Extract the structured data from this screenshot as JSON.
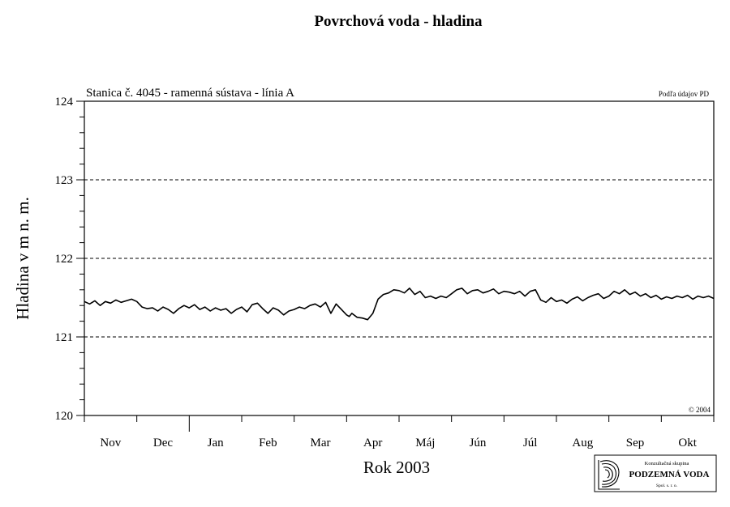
{
  "chart_data": {
    "type": "line",
    "title": "Povrchová voda - hladina",
    "subtitle": "Stanica č. 4045 - ramenná sústava - línia A",
    "source_note": "Podľa údajov PD",
    "copyright": "© 2004",
    "xlabel": "Rok 2003",
    "ylabel": "Hladina v m n. m.",
    "ylim": [
      120,
      124
    ],
    "y_ticks": [
      120,
      121,
      122,
      123,
      124
    ],
    "y_minor_step": 0.2,
    "x_categories": [
      "Nov",
      "Dec",
      "Jan",
      "Feb",
      "Mar",
      "Apr",
      "Máj",
      "Jún",
      "Júl",
      "Aug",
      "Sep",
      "Okt"
    ],
    "grid": "horizontal dashed at 121, 122, 123",
    "series": [
      {
        "color": "#000000",
        "x": [
          0.0,
          0.1,
          0.2,
          0.3,
          0.4,
          0.5,
          0.6,
          0.7,
          0.8,
          0.9,
          1.0,
          1.1,
          1.2,
          1.3,
          1.4,
          1.5,
          1.6,
          1.7,
          1.8,
          1.9,
          2.0,
          2.1,
          2.2,
          2.3,
          2.4,
          2.5,
          2.6,
          2.7,
          2.8,
          2.9,
          3.0,
          3.1,
          3.2,
          3.3,
          3.4,
          3.5,
          3.6,
          3.7,
          3.8,
          3.9,
          4.0,
          4.1,
          4.2,
          4.3,
          4.4,
          4.5,
          4.6,
          4.7,
          4.8,
          4.9,
          5.0,
          5.05,
          5.1,
          5.2,
          5.3,
          5.4,
          5.5,
          5.6,
          5.7,
          5.8,
          5.9,
          6.0,
          6.1,
          6.2,
          6.3,
          6.4,
          6.5,
          6.6,
          6.7,
          6.8,
          6.9,
          7.0,
          7.1,
          7.2,
          7.3,
          7.4,
          7.5,
          7.6,
          7.7,
          7.8,
          7.9,
          8.0,
          8.1,
          8.2,
          8.3,
          8.4,
          8.5,
          8.6,
          8.7,
          8.8,
          8.9,
          9.0,
          9.1,
          9.2,
          9.3,
          9.4,
          9.5,
          9.6,
          9.7,
          9.8,
          9.9,
          10.0,
          10.1,
          10.2,
          10.3,
          10.4,
          10.5,
          10.6,
          10.7,
          10.8,
          10.9,
          11.0,
          11.1,
          11.2,
          11.3,
          11.4,
          11.5,
          11.6,
          11.7,
          11.8,
          11.9,
          12.0
        ],
        "values": [
          121.45,
          121.42,
          121.46,
          121.4,
          121.45,
          121.43,
          121.47,
          121.44,
          121.46,
          121.48,
          121.45,
          121.38,
          121.36,
          121.37,
          121.33,
          121.38,
          121.35,
          121.3,
          121.36,
          121.4,
          121.37,
          121.41,
          121.35,
          121.38,
          121.33,
          121.37,
          121.34,
          121.36,
          121.3,
          121.35,
          121.38,
          121.32,
          121.41,
          121.43,
          121.36,
          121.3,
          121.37,
          121.34,
          121.28,
          121.33,
          121.35,
          121.38,
          121.36,
          121.4,
          121.42,
          121.38,
          121.44,
          121.3,
          121.42,
          121.35,
          121.28,
          121.26,
          121.3,
          121.25,
          121.24,
          121.22,
          121.3,
          121.48,
          121.54,
          121.56,
          121.6,
          121.59,
          121.56,
          121.62,
          121.54,
          121.58,
          121.5,
          121.52,
          121.49,
          121.52,
          121.5,
          121.55,
          121.6,
          121.62,
          121.55,
          121.59,
          121.6,
          121.56,
          121.58,
          121.61,
          121.55,
          121.58,
          121.57,
          121.55,
          121.58,
          121.52,
          121.58,
          121.6,
          121.47,
          121.44,
          121.5,
          121.45,
          121.47,
          121.43,
          121.48,
          121.51,
          121.46,
          121.5,
          121.53,
          121.55,
          121.49,
          121.52,
          121.58,
          121.55,
          121.6,
          121.54,
          121.57,
          121.52,
          121.55,
          121.5,
          121.53,
          121.48,
          121.51,
          121.49,
          121.52,
          121.5,
          121.53,
          121.48,
          121.52,
          121.5,
          121.52,
          121.49
        ]
      }
    ]
  },
  "logo": {
    "line1": "Konzultačná skupina",
    "line2": "PODZEMNÁ VODA",
    "line3": "Spol. s. r. o."
  }
}
